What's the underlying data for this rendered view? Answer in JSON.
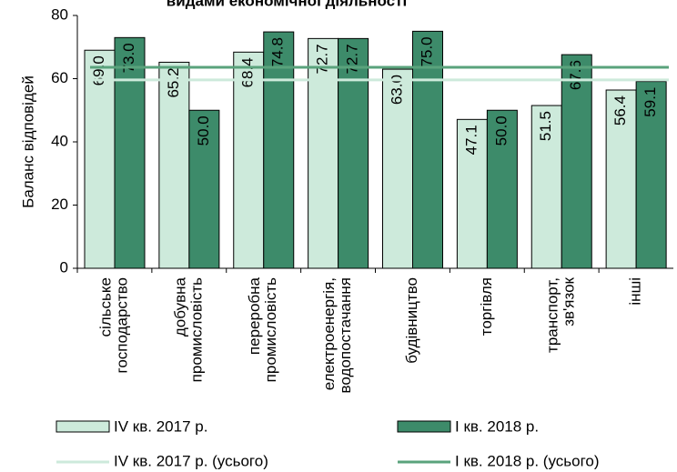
{
  "chart_data": {
    "type": "bar",
    "title": "видами економічної діяльності",
    "y_label": "Баланс відповідей",
    "categories": [
      [
        "сільське",
        "господарство"
      ],
      [
        "добувна",
        "промисловість"
      ],
      [
        "переробна",
        "промисловість"
      ],
      [
        "електроенергія,",
        "водопостачання"
      ],
      [
        "будівництво"
      ],
      [
        "торгівля"
      ],
      [
        "транспорт,",
        "зв'язок"
      ],
      [
        "інші"
      ]
    ],
    "series": [
      {
        "name": "IV кв. 2017 р.",
        "color": "#cdeadb",
        "values": [
          69.0,
          65.2,
          68.4,
          72.7,
          63.0,
          47.1,
          51.5,
          56.4
        ],
        "value_labels": [
          "69.0",
          "65.2",
          "68.4",
          "72.7",
          "63.0",
          "47.1",
          "51.5",
          "56.4"
        ]
      },
      {
        "name": "I кв. 2018 р.",
        "color": "#3d8b6a",
        "values": [
          73.0,
          50.0,
          74.8,
          72.7,
          75.0,
          50.0,
          67.6,
          59.1
        ],
        "value_labels": [
          "73.0",
          "50.0",
          "74.8",
          "72.7",
          "75.0",
          "50.0",
          "67.6",
          "59.1"
        ]
      }
    ],
    "reference_lines": [
      {
        "name": "IV кв. 2017 р. (усього)",
        "color": "#cdeadb",
        "value": 59.6
      },
      {
        "name": "I кв. 2018 р. (усього)",
        "color": "#5aa37c",
        "value": 63.6
      }
    ],
    "ylim": [
      0,
      80
    ],
    "yticks": [
      0,
      20,
      40,
      60,
      80
    ]
  }
}
